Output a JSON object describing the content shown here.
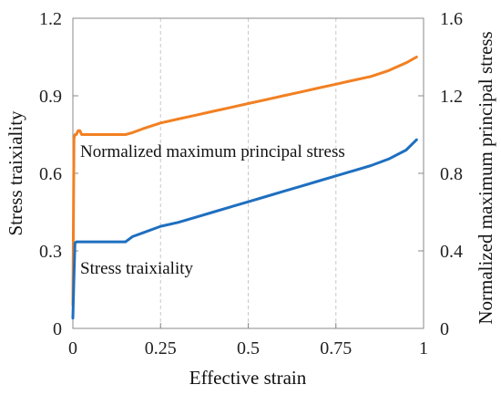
{
  "chart_data": {
    "type": "line",
    "title": "",
    "xlabel": "Effective strain",
    "ylabel_left": "Stress traixiality",
    "ylabel_right": "Normalized maximum principal stress",
    "xlim": [
      0,
      1
    ],
    "ylim_left": [
      0,
      1.2
    ],
    "ylim_right": [
      0,
      1.6
    ],
    "x_ticks": [
      "0",
      "0.25",
      "0.5",
      "0.75",
      "1"
    ],
    "y_left_ticks": [
      "0",
      "0.3",
      "0.6",
      "0.9",
      "1.2"
    ],
    "y_right_ticks": [
      "0",
      "0.4",
      "0.8",
      "1.2",
      "1.6"
    ],
    "grid": "vertical-dashed",
    "legend": "none",
    "series": [
      {
        "label_text": "Normalized maximum principal stress",
        "axis": "right",
        "color": "#F28022",
        "x": [
          0,
          0.003,
          0.006,
          0.01,
          0.015,
          0.02,
          0.025,
          0.03,
          0.05,
          0.1,
          0.15,
          0.17,
          0.2,
          0.25,
          0.3,
          0.35,
          0.4,
          0.45,
          0.5,
          0.55,
          0.6,
          0.65,
          0.7,
          0.75,
          0.8,
          0.85,
          0.9,
          0.95,
          0.98
        ],
        "y": [
          0.12,
          0.98,
          1.0,
          1.0,
          1.02,
          1.02,
          1.0,
          1.0,
          1.0,
          1.0,
          1.0,
          1.01,
          1.03,
          1.06,
          1.08,
          1.1,
          1.12,
          1.14,
          1.16,
          1.18,
          1.2,
          1.22,
          1.24,
          1.26,
          1.28,
          1.3,
          1.33,
          1.37,
          1.4
        ]
      },
      {
        "label_text": "Stress traixiality",
        "axis": "left",
        "color": "#1F6FC0",
        "x": [
          0,
          0.003,
          0.006,
          0.01,
          0.02,
          0.05,
          0.1,
          0.15,
          0.17,
          0.2,
          0.25,
          0.3,
          0.35,
          0.4,
          0.45,
          0.5,
          0.55,
          0.6,
          0.65,
          0.7,
          0.75,
          0.8,
          0.85,
          0.9,
          0.95,
          0.98
        ],
        "y": [
          0.04,
          0.2,
          0.33,
          0.335,
          0.335,
          0.335,
          0.335,
          0.335,
          0.355,
          0.37,
          0.395,
          0.41,
          0.43,
          0.45,
          0.47,
          0.49,
          0.51,
          0.53,
          0.55,
          0.57,
          0.59,
          0.61,
          0.63,
          0.655,
          0.69,
          0.73
        ]
      }
    ]
  }
}
